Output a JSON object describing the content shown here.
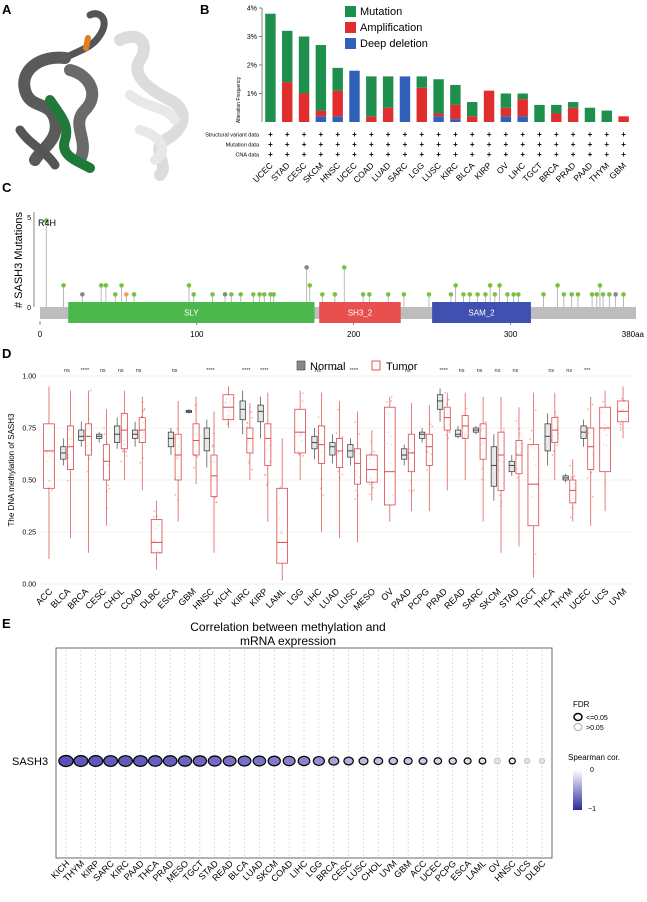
{
  "panels": {
    "a": "A",
    "b": "B",
    "c": "C",
    "d": "D",
    "e": "E"
  },
  "colors": {
    "mutation": "#1f8f4e",
    "amplification": "#e02d2d",
    "deep_deletion": "#3060b8",
    "normal_box": "#888888",
    "tumor_box": "#d94a4a",
    "tumor_point": "#e87878",
    "lollipop_green": "#7ac143",
    "lollipop_gray": "#888888",
    "lollipop_orange": "#f0a050",
    "sly": "#4cb84c",
    "sh3": "#e85050",
    "sam": "#4050b0",
    "backbone": "#bdbdbd",
    "ellipse_fill": "#5a4fb8",
    "ellipse_light": "#d8d8e8"
  },
  "panelA": {
    "structure": "protein ribbon rendering (gray/green/orange/white)"
  },
  "panelB": {
    "ylabel": "Alteration Frequency",
    "yticks": [
      "4%",
      "3%",
      "2%",
      "1%"
    ],
    "legend": [
      "Mutation",
      "Amplification",
      "Deep deletion"
    ],
    "row_labels": [
      "Structural variant data",
      "Mutation data",
      "CNA data"
    ],
    "row_mark": "+",
    "chart_data": {
      "type": "bar",
      "ylim": [
        0,
        4
      ],
      "categories": [
        "UCEC",
        "STAD",
        "CESC",
        "SKCM",
        "HNSC",
        "UCEC",
        "COAD",
        "LUAD",
        "SARC",
        "LGG",
        "LUSC",
        "KIRC",
        "BLCA",
        "KIRP",
        "OV",
        "LIHC",
        "TGCT",
        "BRCA",
        "PRAD",
        "PAAD",
        "THYM",
        "GBM"
      ],
      "series": [
        {
          "name": "Mutation",
          "values": [
            3.8,
            1.8,
            2.0,
            2.3,
            0.8,
            0.0,
            1.4,
            1.1,
            0.0,
            0.4,
            1.2,
            0.7,
            0.5,
            0.0,
            0.5,
            0.2,
            0.6,
            0.3,
            0.2,
            0.5,
            0.4,
            0.0
          ]
        },
        {
          "name": "Amplification",
          "values": [
            0.0,
            1.4,
            1.0,
            0.2,
            0.9,
            0.0,
            0.2,
            0.5,
            0.0,
            1.2,
            0.1,
            0.5,
            0.2,
            1.1,
            0.3,
            0.6,
            0.0,
            0.3,
            0.5,
            0.0,
            0.0,
            0.2
          ]
        },
        {
          "name": "Deep deletion",
          "values": [
            0.0,
            0.0,
            0.0,
            0.2,
            0.2,
            1.8,
            0.0,
            0.0,
            1.6,
            0.0,
            0.2,
            0.1,
            0.0,
            0.0,
            0.2,
            0.2,
            0.0,
            0.0,
            0.0,
            0.0,
            0.0,
            0.0
          ]
        }
      ]
    }
  },
  "panelC": {
    "ylabel": "# SASH3 Mutations",
    "yticks": [
      "5",
      "0"
    ],
    "xticks": [
      "0",
      "100",
      "200",
      "300",
      "380aa"
    ],
    "hotspot": "R4H",
    "domains": [
      {
        "name": "SLY",
        "start": 18,
        "end": 175
      },
      {
        "name": "SH3_2",
        "start": 178,
        "end": 230
      },
      {
        "name": "SAM_2",
        "start": 250,
        "end": 313
      }
    ],
    "length": 380,
    "chart_data": {
      "type": "scatter",
      "x": [
        4,
        15,
        27,
        39,
        42,
        48,
        52,
        55,
        60,
        95,
        98,
        110,
        118,
        122,
        128,
        136,
        140,
        143,
        147,
        149,
        170,
        172,
        180,
        188,
        194,
        206,
        210,
        222,
        232,
        248,
        262,
        265,
        270,
        274,
        279,
        284,
        287,
        290,
        293,
        298,
        302,
        305,
        321,
        330,
        334,
        339,
        343,
        352,
        355,
        357,
        359,
        363,
        367,
        372
      ],
      "y": [
        4.8,
        1.2,
        0.7,
        1.2,
        1.2,
        0.7,
        1.2,
        0.7,
        0.7,
        1.2,
        0.7,
        0.7,
        0.7,
        0.7,
        0.7,
        0.7,
        0.7,
        0.7,
        0.7,
        0.7,
        2.2,
        1.2,
        0.7,
        0.7,
        2.2,
        0.7,
        0.7,
        0.7,
        0.7,
        0.7,
        0.7,
        1.2,
        0.7,
        0.7,
        0.7,
        0.7,
        1.2,
        0.7,
        1.2,
        0.7,
        0.7,
        0.7,
        0.7,
        1.2,
        0.7,
        0.7,
        0.7,
        0.7,
        0.7,
        1.2,
        0.7,
        0.7,
        0.7,
        0.7
      ]
    }
  },
  "panelD": {
    "ylabel": "The DNA methylation of SASH3",
    "yticks": [
      "1.00",
      "0.75",
      "0.50",
      "0.25",
      "0.00"
    ],
    "legend": [
      "Normal",
      "Tumor"
    ],
    "chart_data": {
      "type": "box",
      "ylim": [
        0,
        1
      ],
      "categories": [
        "ACC",
        "BLCA",
        "BRCA",
        "CESC",
        "CHOL",
        "COAD",
        "DLBC",
        "ESCA",
        "GBM",
        "HNSC",
        "KICH",
        "KIRC",
        "KIRP",
        "LAML",
        "LGG",
        "LIHC",
        "LUAD",
        "LUSC",
        "MESO",
        "OV",
        "PAAD",
        "PCPG",
        "PRAD",
        "READ",
        "SARC",
        "SKCM",
        "STAD",
        "TGCT",
        "THCA",
        "THYM",
        "UCEC",
        "UCS",
        "UVM"
      ],
      "significance": [
        "",
        "ns",
        "****",
        "ns",
        "ns",
        "ns",
        "",
        "ns",
        "",
        "****",
        "",
        "****",
        "****",
        "",
        "",
        "ns",
        "**",
        "****",
        "",
        "",
        "ns",
        "",
        "****",
        "ns",
        "ns",
        "ns",
        "ns",
        "",
        "ns",
        "ns",
        "***",
        "",
        ""
      ],
      "normal": [
        null,
        [
          0.57,
          0.6,
          0.63,
          0.66,
          0.7
        ],
        [
          0.66,
          0.69,
          0.71,
          0.74,
          0.78
        ],
        [
          0.68,
          0.7,
          0.71,
          0.72,
          0.73
        ],
        [
          0.65,
          0.68,
          0.72,
          0.76,
          0.8
        ],
        [
          0.66,
          0.7,
          0.72,
          0.74,
          0.78
        ],
        null,
        [
          0.62,
          0.66,
          0.7,
          0.73,
          0.75
        ],
        [
          0.82,
          0.825,
          0.83,
          0.835,
          0.84
        ],
        [
          0.56,
          0.64,
          0.7,
          0.75,
          0.79
        ],
        null,
        [
          0.72,
          0.79,
          0.84,
          0.88,
          0.93
        ],
        [
          0.7,
          0.78,
          0.83,
          0.86,
          0.9
        ],
        null,
        null,
        [
          0.6,
          0.65,
          0.68,
          0.71,
          0.75
        ],
        [
          0.58,
          0.62,
          0.66,
          0.68,
          0.72
        ],
        [
          0.57,
          0.61,
          0.64,
          0.67,
          0.7
        ],
        null,
        null,
        [
          0.57,
          0.6,
          0.62,
          0.65,
          0.67
        ],
        [
          0.68,
          0.7,
          0.72,
          0.73,
          0.75
        ],
        [
          0.78,
          0.84,
          0.88,
          0.91,
          0.94
        ],
        [
          0.7,
          0.71,
          0.72,
          0.74,
          0.76
        ],
        [
          0.72,
          0.73,
          0.74,
          0.75,
          0.76
        ],
        [
          0.4,
          0.47,
          0.57,
          0.66,
          0.72
        ],
        [
          0.52,
          0.54,
          0.57,
          0.59,
          0.62
        ],
        null,
        [
          0.57,
          0.64,
          0.71,
          0.77,
          0.82
        ],
        [
          0.49,
          0.5,
          0.51,
          0.52,
          0.53
        ],
        [
          0.66,
          0.7,
          0.73,
          0.76,
          0.79
        ],
        null,
        null
      ],
      "tumor": [
        [
          0.12,
          0.46,
          0.64,
          0.77,
          0.95
        ],
        [
          0.22,
          0.55,
          0.66,
          0.76,
          0.93
        ],
        [
          0.15,
          0.62,
          0.71,
          0.77,
          0.93
        ],
        [
          0.28,
          0.5,
          0.59,
          0.67,
          0.84
        ],
        [
          0.5,
          0.65,
          0.74,
          0.82,
          0.93
        ],
        [
          0.45,
          0.68,
          0.74,
          0.8,
          0.9
        ],
        [
          0.07,
          0.15,
          0.2,
          0.31,
          0.4
        ],
        [
          0.3,
          0.5,
          0.62,
          0.72,
          0.88
        ],
        [
          0.48,
          0.62,
          0.69,
          0.77,
          0.9
        ],
        [
          0.15,
          0.42,
          0.52,
          0.62,
          0.83
        ],
        [
          0.75,
          0.79,
          0.85,
          0.91,
          0.95
        ],
        [
          0.5,
          0.63,
          0.7,
          0.75,
          0.87
        ],
        [
          0.3,
          0.57,
          0.7,
          0.77,
          0.92
        ],
        [
          0.02,
          0.1,
          0.2,
          0.46,
          0.7
        ],
        [
          0.5,
          0.63,
          0.73,
          0.84,
          0.93
        ],
        [
          0.25,
          0.58,
          0.67,
          0.76,
          0.92
        ],
        [
          0.22,
          0.56,
          0.64,
          0.7,
          0.88
        ],
        [
          0.2,
          0.48,
          0.58,
          0.65,
          0.83
        ],
        [
          0.4,
          0.49,
          0.55,
          0.62,
          0.74
        ],
        [
          0.3,
          0.38,
          0.54,
          0.85,
          0.9
        ],
        [
          0.35,
          0.54,
          0.63,
          0.72,
          0.87
        ],
        [
          0.35,
          0.57,
          0.66,
          0.72,
          0.86
        ],
        [
          0.45,
          0.74,
          0.8,
          0.85,
          0.92
        ],
        [
          0.5,
          0.7,
          0.76,
          0.81,
          0.92
        ],
        [
          0.3,
          0.6,
          0.7,
          0.77,
          0.9
        ],
        [
          0.15,
          0.45,
          0.62,
          0.73,
          0.9
        ],
        [
          0.18,
          0.53,
          0.62,
          0.69,
          0.85
        ],
        [
          0.03,
          0.28,
          0.48,
          0.67,
          0.92
        ],
        [
          0.5,
          0.68,
          0.74,
          0.8,
          0.92
        ],
        [
          0.3,
          0.39,
          0.45,
          0.5,
          0.6
        ],
        [
          0.28,
          0.55,
          0.66,
          0.75,
          0.9
        ],
        [
          0.35,
          0.54,
          0.75,
          0.85,
          0.93
        ],
        [
          0.7,
          0.78,
          0.83,
          0.88,
          0.95
        ]
      ]
    }
  },
  "panelE": {
    "title_line1": "Correlation between methylation and",
    "title_line2": "mRNA expression",
    "row_label": "SASH3",
    "fdr_title": "FDR",
    "fdr_items": [
      "<=0.05",
      ">0.05"
    ],
    "cor_title": "Spearman cor.",
    "cor_ticks": [
      "0",
      "−1"
    ],
    "chart_data": {
      "type": "bubble",
      "categories": [
        "KICH",
        "THYM",
        "KIRP",
        "SARC",
        "KIRC",
        "PAAD",
        "THCA",
        "PRAD",
        "MESO",
        "TGCT",
        "STAD",
        "READ",
        "BLCA",
        "LUAD",
        "SKCM",
        "COAD",
        "LIHC",
        "LGG",
        "BRCA",
        "CESC",
        "LUSC",
        "CHOL",
        "UVM",
        "GBM",
        "ACC",
        "UCEC",
        "PCPG",
        "ESCA",
        "LAML",
        "OV",
        "HNSC",
        "UCS",
        "DLBC"
      ],
      "cor": [
        -0.85,
        -0.82,
        -0.82,
        -0.8,
        -0.8,
        -0.8,
        -0.78,
        -0.78,
        -0.75,
        -0.75,
        -0.72,
        -0.7,
        -0.7,
        -0.68,
        -0.65,
        -0.62,
        -0.6,
        -0.55,
        -0.45,
        -0.4,
        -0.35,
        -0.32,
        -0.3,
        -0.28,
        -0.25,
        -0.22,
        -0.2,
        -0.18,
        -0.15,
        -0.12,
        -0.1,
        -0.05,
        -0.03
      ],
      "significant": [
        true,
        true,
        true,
        true,
        true,
        true,
        true,
        true,
        true,
        true,
        true,
        true,
        true,
        true,
        true,
        true,
        true,
        true,
        true,
        true,
        true,
        true,
        true,
        true,
        true,
        true,
        true,
        true,
        true,
        false,
        true,
        false,
        false
      ]
    }
  }
}
